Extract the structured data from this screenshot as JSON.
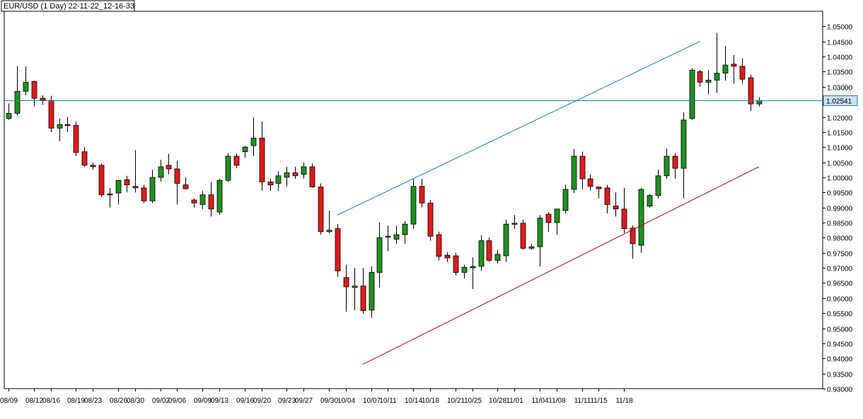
{
  "header": {
    "title": "EUR/USD (1 Day) 22-11-22_12-16-33"
  },
  "chart_data": {
    "type": "candlestick",
    "symbol": "EUR/USD",
    "timeframe": "1 Day",
    "ylim": [
      0.93,
      1.055
    ],
    "y_ticks": [
      "1.05000",
      "1.04500",
      "1.04000",
      "1.03500",
      "1.03000",
      "1.02500",
      "1.02000",
      "1.01500",
      "1.01000",
      "1.00500",
      "1.00000",
      "0.99500",
      "0.99000",
      "0.98500",
      "0.98000",
      "0.97500",
      "0.97000",
      "0.96500",
      "0.96000",
      "0.95500",
      "0.95000",
      "0.94500",
      "0.94000",
      "0.93500",
      "0.93000"
    ],
    "x_tick_labels": [
      {
        "label": "08/09",
        "index": 0
      },
      {
        "label": "08/12",
        "index": 3
      },
      {
        "label": "08/16",
        "index": 5
      },
      {
        "label": "08/19",
        "index": 8
      },
      {
        "label": "08/23",
        "index": 10
      },
      {
        "label": "08/26",
        "index": 13
      },
      {
        "label": "08/30",
        "index": 15
      },
      {
        "label": "09/02",
        "index": 18
      },
      {
        "label": "09/06",
        "index": 20
      },
      {
        "label": "09/09",
        "index": 23
      },
      {
        "label": "09/13",
        "index": 25
      },
      {
        "label": "09/16",
        "index": 28
      },
      {
        "label": "09/20",
        "index": 30
      },
      {
        "label": "09/23",
        "index": 33
      },
      {
        "label": "09/27",
        "index": 35
      },
      {
        "label": "09/30",
        "index": 38
      },
      {
        "label": "10/04",
        "index": 40
      },
      {
        "label": "10/07",
        "index": 43
      },
      {
        "label": "10/11",
        "index": 45
      },
      {
        "label": "10/14",
        "index": 48
      },
      {
        "label": "10/18",
        "index": 50
      },
      {
        "label": "10/21",
        "index": 53
      },
      {
        "label": "10/25",
        "index": 55
      },
      {
        "label": "10/28",
        "index": 58
      },
      {
        "label": "11/01",
        "index": 60
      },
      {
        "label": "11/04",
        "index": 63
      },
      {
        "label": "11/08",
        "index": 65
      },
      {
        "label": "11/11",
        "index": 68
      },
      {
        "label": "11/15",
        "index": 70
      },
      {
        "label": "11/18",
        "index": 73
      }
    ],
    "candles": [
      {
        "o": 1.0195,
        "h": 1.0245,
        "l": 1.019,
        "c": 1.0212
      },
      {
        "o": 1.0212,
        "h": 1.0368,
        "l": 1.0205,
        "c": 1.0285
      },
      {
        "o": 1.0285,
        "h": 1.0368,
        "l": 1.0272,
        "c": 1.0315
      },
      {
        "o": 1.0318,
        "h": 1.032,
        "l": 1.0235,
        "c": 1.0262
      },
      {
        "o": 1.0262,
        "h": 1.0272,
        "l": 1.024,
        "c": 1.0255
      },
      {
        "o": 1.0255,
        "h": 1.027,
        "l": 1.015,
        "c": 1.0163
      },
      {
        "o": 1.0163,
        "h": 1.0195,
        "l": 1.012,
        "c": 1.0175
      },
      {
        "o": 1.0175,
        "h": 1.02,
        "l": 1.015,
        "c": 1.0172
      },
      {
        "o": 1.0172,
        "h": 1.0185,
        "l": 1.007,
        "c": 1.0082
      },
      {
        "o": 1.0085,
        "h": 1.01,
        "l": 1.0035,
        "c": 1.004
      },
      {
        "o": 1.004,
        "h": 1.0048,
        "l": 1.0025,
        "c": 1.0035
      },
      {
        "o": 1.004,
        "h": 1.0045,
        "l": 0.9935,
        "c": 0.9942
      },
      {
        "o": 0.9942,
        "h": 0.9965,
        "l": 0.99,
        "c": 0.9945
      },
      {
        "o": 0.9948,
        "h": 0.9992,
        "l": 0.991,
        "c": 0.999
      },
      {
        "o": 0.9992,
        "h": 1.0005,
        "l": 0.995,
        "c": 0.9975
      },
      {
        "o": 0.997,
        "h": 1.009,
        "l": 0.995,
        "c": 0.9965
      },
      {
        "o": 0.9965,
        "h": 0.9975,
        "l": 0.9915,
        "c": 0.9922
      },
      {
        "o": 0.9922,
        "h": 1.0025,
        "l": 0.9915,
        "c": 1.0
      },
      {
        "o": 1.0,
        "h": 1.0058,
        "l": 0.9985,
        "c": 1.0035
      },
      {
        "o": 1.004,
        "h": 1.0078,
        "l": 1.001,
        "c": 1.0028
      },
      {
        "o": 1.0028,
        "h": 1.0055,
        "l": 0.991,
        "c": 0.998
      },
      {
        "o": 0.9975,
        "h": 1.0,
        "l": 0.996,
        "c": 0.9962
      },
      {
        "o": 0.9925,
        "h": 0.993,
        "l": 0.99,
        "c": 0.9915
      },
      {
        "o": 0.991,
        "h": 0.9955,
        "l": 0.9895,
        "c": 0.9942
      },
      {
        "o": 0.9942,
        "h": 0.9985,
        "l": 0.987,
        "c": 0.9895
      },
      {
        "o": 0.9885,
        "h": 0.9995,
        "l": 0.9875,
        "c": 0.999
      },
      {
        "o": 0.999,
        "h": 1.008,
        "l": 0.9985,
        "c": 1.007
      },
      {
        "o": 1.007,
        "h": 1.0078,
        "l": 1.003,
        "c": 1.004
      },
      {
        "o": 1.0085,
        "h": 1.0105,
        "l": 1.0065,
        "c": 1.01
      },
      {
        "o": 1.0105,
        "h": 1.0198,
        "l": 1.007,
        "c": 1.013
      },
      {
        "o": 1.013,
        "h": 1.0185,
        "l": 0.9955,
        "c": 0.9985
      },
      {
        "o": 0.9985,
        "h": 0.9995,
        "l": 0.9955,
        "c": 0.9975
      },
      {
        "o": 0.998,
        "h": 1.002,
        "l": 0.9955,
        "c": 1.0005
      },
      {
        "o": 1.0,
        "h": 1.0035,
        "l": 0.997,
        "c": 1.0015
      },
      {
        "o": 1.0015,
        "h": 1.0035,
        "l": 0.9995,
        "c": 1.0005
      },
      {
        "o": 1.001,
        "h": 1.005,
        "l": 0.9995,
        "c": 1.0035
      },
      {
        "o": 1.0035,
        "h": 1.0045,
        "l": 0.9965,
        "c": 0.9968
      },
      {
        "o": 0.9968,
        "h": 0.998,
        "l": 0.981,
        "c": 0.982
      },
      {
        "o": 0.982,
        "h": 0.989,
        "l": 0.9815,
        "c": 0.9825
      },
      {
        "o": 0.983,
        "h": 0.9845,
        "l": 0.967,
        "c": 0.969
      },
      {
        "o": 0.9668,
        "h": 0.971,
        "l": 0.9555,
        "c": 0.9637
      },
      {
        "o": 0.9635,
        "h": 0.97,
        "l": 0.956,
        "c": 0.964
      },
      {
        "o": 0.964,
        "h": 0.97,
        "l": 0.9548,
        "c": 0.9558
      },
      {
        "o": 0.956,
        "h": 0.9705,
        "l": 0.9535,
        "c": 0.9685
      },
      {
        "o": 0.9685,
        "h": 0.985,
        "l": 0.9635,
        "c": 0.98
      },
      {
        "o": 0.9802,
        "h": 0.984,
        "l": 0.9755,
        "c": 0.9805
      },
      {
        "o": 0.9795,
        "h": 0.984,
        "l": 0.978,
        "c": 0.981
      },
      {
        "o": 0.981,
        "h": 0.9855,
        "l": 0.978,
        "c": 0.9845
      },
      {
        "o": 0.9845,
        "h": 0.9995,
        "l": 0.983,
        "c": 0.997
      },
      {
        "o": 0.997,
        "h": 0.9995,
        "l": 0.99,
        "c": 0.9915
      },
      {
        "o": 0.9915,
        "h": 0.9925,
        "l": 0.979,
        "c": 0.9805
      },
      {
        "o": 0.981,
        "h": 0.982,
        "l": 0.9725,
        "c": 0.9738
      },
      {
        "o": 0.9742,
        "h": 0.9752,
        "l": 0.972,
        "c": 0.9733
      },
      {
        "o": 0.974,
        "h": 0.975,
        "l": 0.9675,
        "c": 0.9685
      },
      {
        "o": 0.9685,
        "h": 0.971,
        "l": 0.9665,
        "c": 0.9702
      },
      {
        "o": 0.97,
        "h": 0.9735,
        "l": 0.963,
        "c": 0.9705
      },
      {
        "o": 0.9705,
        "h": 0.9808,
        "l": 0.969,
        "c": 0.979
      },
      {
        "o": 0.979,
        "h": 0.98,
        "l": 0.972,
        "c": 0.9725
      },
      {
        "o": 0.9725,
        "h": 0.976,
        "l": 0.9715,
        "c": 0.9745
      },
      {
        "o": 0.974,
        "h": 0.986,
        "l": 0.972,
        "c": 0.9845
      },
      {
        "o": 0.9845,
        "h": 0.9875,
        "l": 0.983,
        "c": 0.9848
      },
      {
        "o": 0.9848,
        "h": 0.986,
        "l": 0.976,
        "c": 0.9765
      },
      {
        "o": 0.9765,
        "h": 0.978,
        "l": 0.976,
        "c": 0.977
      },
      {
        "o": 0.977,
        "h": 0.9875,
        "l": 0.9705,
        "c": 0.9865
      },
      {
        "o": 0.9878,
        "h": 0.9885,
        "l": 0.982,
        "c": 0.985
      },
      {
        "o": 0.985,
        "h": 0.9895,
        "l": 0.981,
        "c": 0.9895
      },
      {
        "o": 0.989,
        "h": 0.9975,
        "l": 0.988,
        "c": 0.996
      },
      {
        "o": 0.996,
        "h": 1.0095,
        "l": 0.9948,
        "c": 1.007
      },
      {
        "o": 1.007,
        "h": 1.0085,
        "l": 0.996,
        "c": 0.9995
      },
      {
        "o": 0.9995,
        "h": 1.001,
        "l": 0.9955,
        "c": 0.997
      },
      {
        "o": 0.9968,
        "h": 0.997,
        "l": 0.993,
        "c": 0.9962
      },
      {
        "o": 0.9965,
        "h": 0.9975,
        "l": 0.988,
        "c": 0.991
      },
      {
        "o": 0.9905,
        "h": 0.995,
        "l": 0.987,
        "c": 0.9895
      },
      {
        "o": 0.9895,
        "h": 0.9965,
        "l": 0.9815,
        "c": 0.983
      },
      {
        "o": 0.9832,
        "h": 0.984,
        "l": 0.973,
        "c": 0.978
      },
      {
        "o": 0.9775,
        "h": 0.9965,
        "l": 0.975,
        "c": 0.996
      },
      {
        "o": 0.9905,
        "h": 0.9945,
        "l": 0.99,
        "c": 0.994
      },
      {
        "o": 0.994,
        "h": 1.0025,
        "l": 0.993,
        "c": 1.0005
      },
      {
        "o": 1.0005,
        "h": 1.0095,
        "l": 0.9995,
        "c": 1.007
      },
      {
        "o": 1.007,
        "h": 1.008,
        "l": 0.9995,
        "c": 1.003
      },
      {
        "o": 1.003,
        "h": 1.0215,
        "l": 0.993,
        "c": 1.019
      },
      {
        "o": 1.0195,
        "h": 1.0362,
        "l": 1.019,
        "c": 1.0355
      },
      {
        "o": 1.035,
        "h": 1.0355,
        "l": 1.03,
        "c": 1.0315
      },
      {
        "o": 1.0315,
        "h": 1.0355,
        "l": 1.0275,
        "c": 1.0322
      },
      {
        "o": 1.0322,
        "h": 1.0478,
        "l": 1.028,
        "c": 1.0345
      },
      {
        "o": 1.0345,
        "h": 1.0435,
        "l": 1.032,
        "c": 1.0372
      },
      {
        "o": 1.0375,
        "h": 1.0405,
        "l": 1.031,
        "c": 1.0368
      },
      {
        "o": 1.0368,
        "h": 1.0395,
        "l": 1.031,
        "c": 1.0325
      },
      {
        "o": 1.033,
        "h": 1.034,
        "l": 1.022,
        "c": 1.0243
      },
      {
        "o": 1.0243,
        "h": 1.0265,
        "l": 1.0235,
        "c": 1.0254
      }
    ],
    "colors": {
      "bull": "#1f8f1f",
      "bear": "#e01b1b",
      "wick": "#000000",
      "horizontal_line": "#1e7fb8",
      "upper_trendline": "#1e7fb8",
      "lower_trendline": "#a0101a"
    },
    "horizontal_line": {
      "price": 1.02541,
      "label": "1.02541"
    },
    "trendlines": [
      {
        "name": "upper",
        "from": {
          "index": 39,
          "price": 0.9875
        },
        "to": {
          "index": 82,
          "price": 1.045
        }
      },
      {
        "name": "lower",
        "from": {
          "index": 42,
          "price": 0.938
        },
        "to": {
          "index": 89,
          "price": 1.0035
        }
      }
    ]
  }
}
